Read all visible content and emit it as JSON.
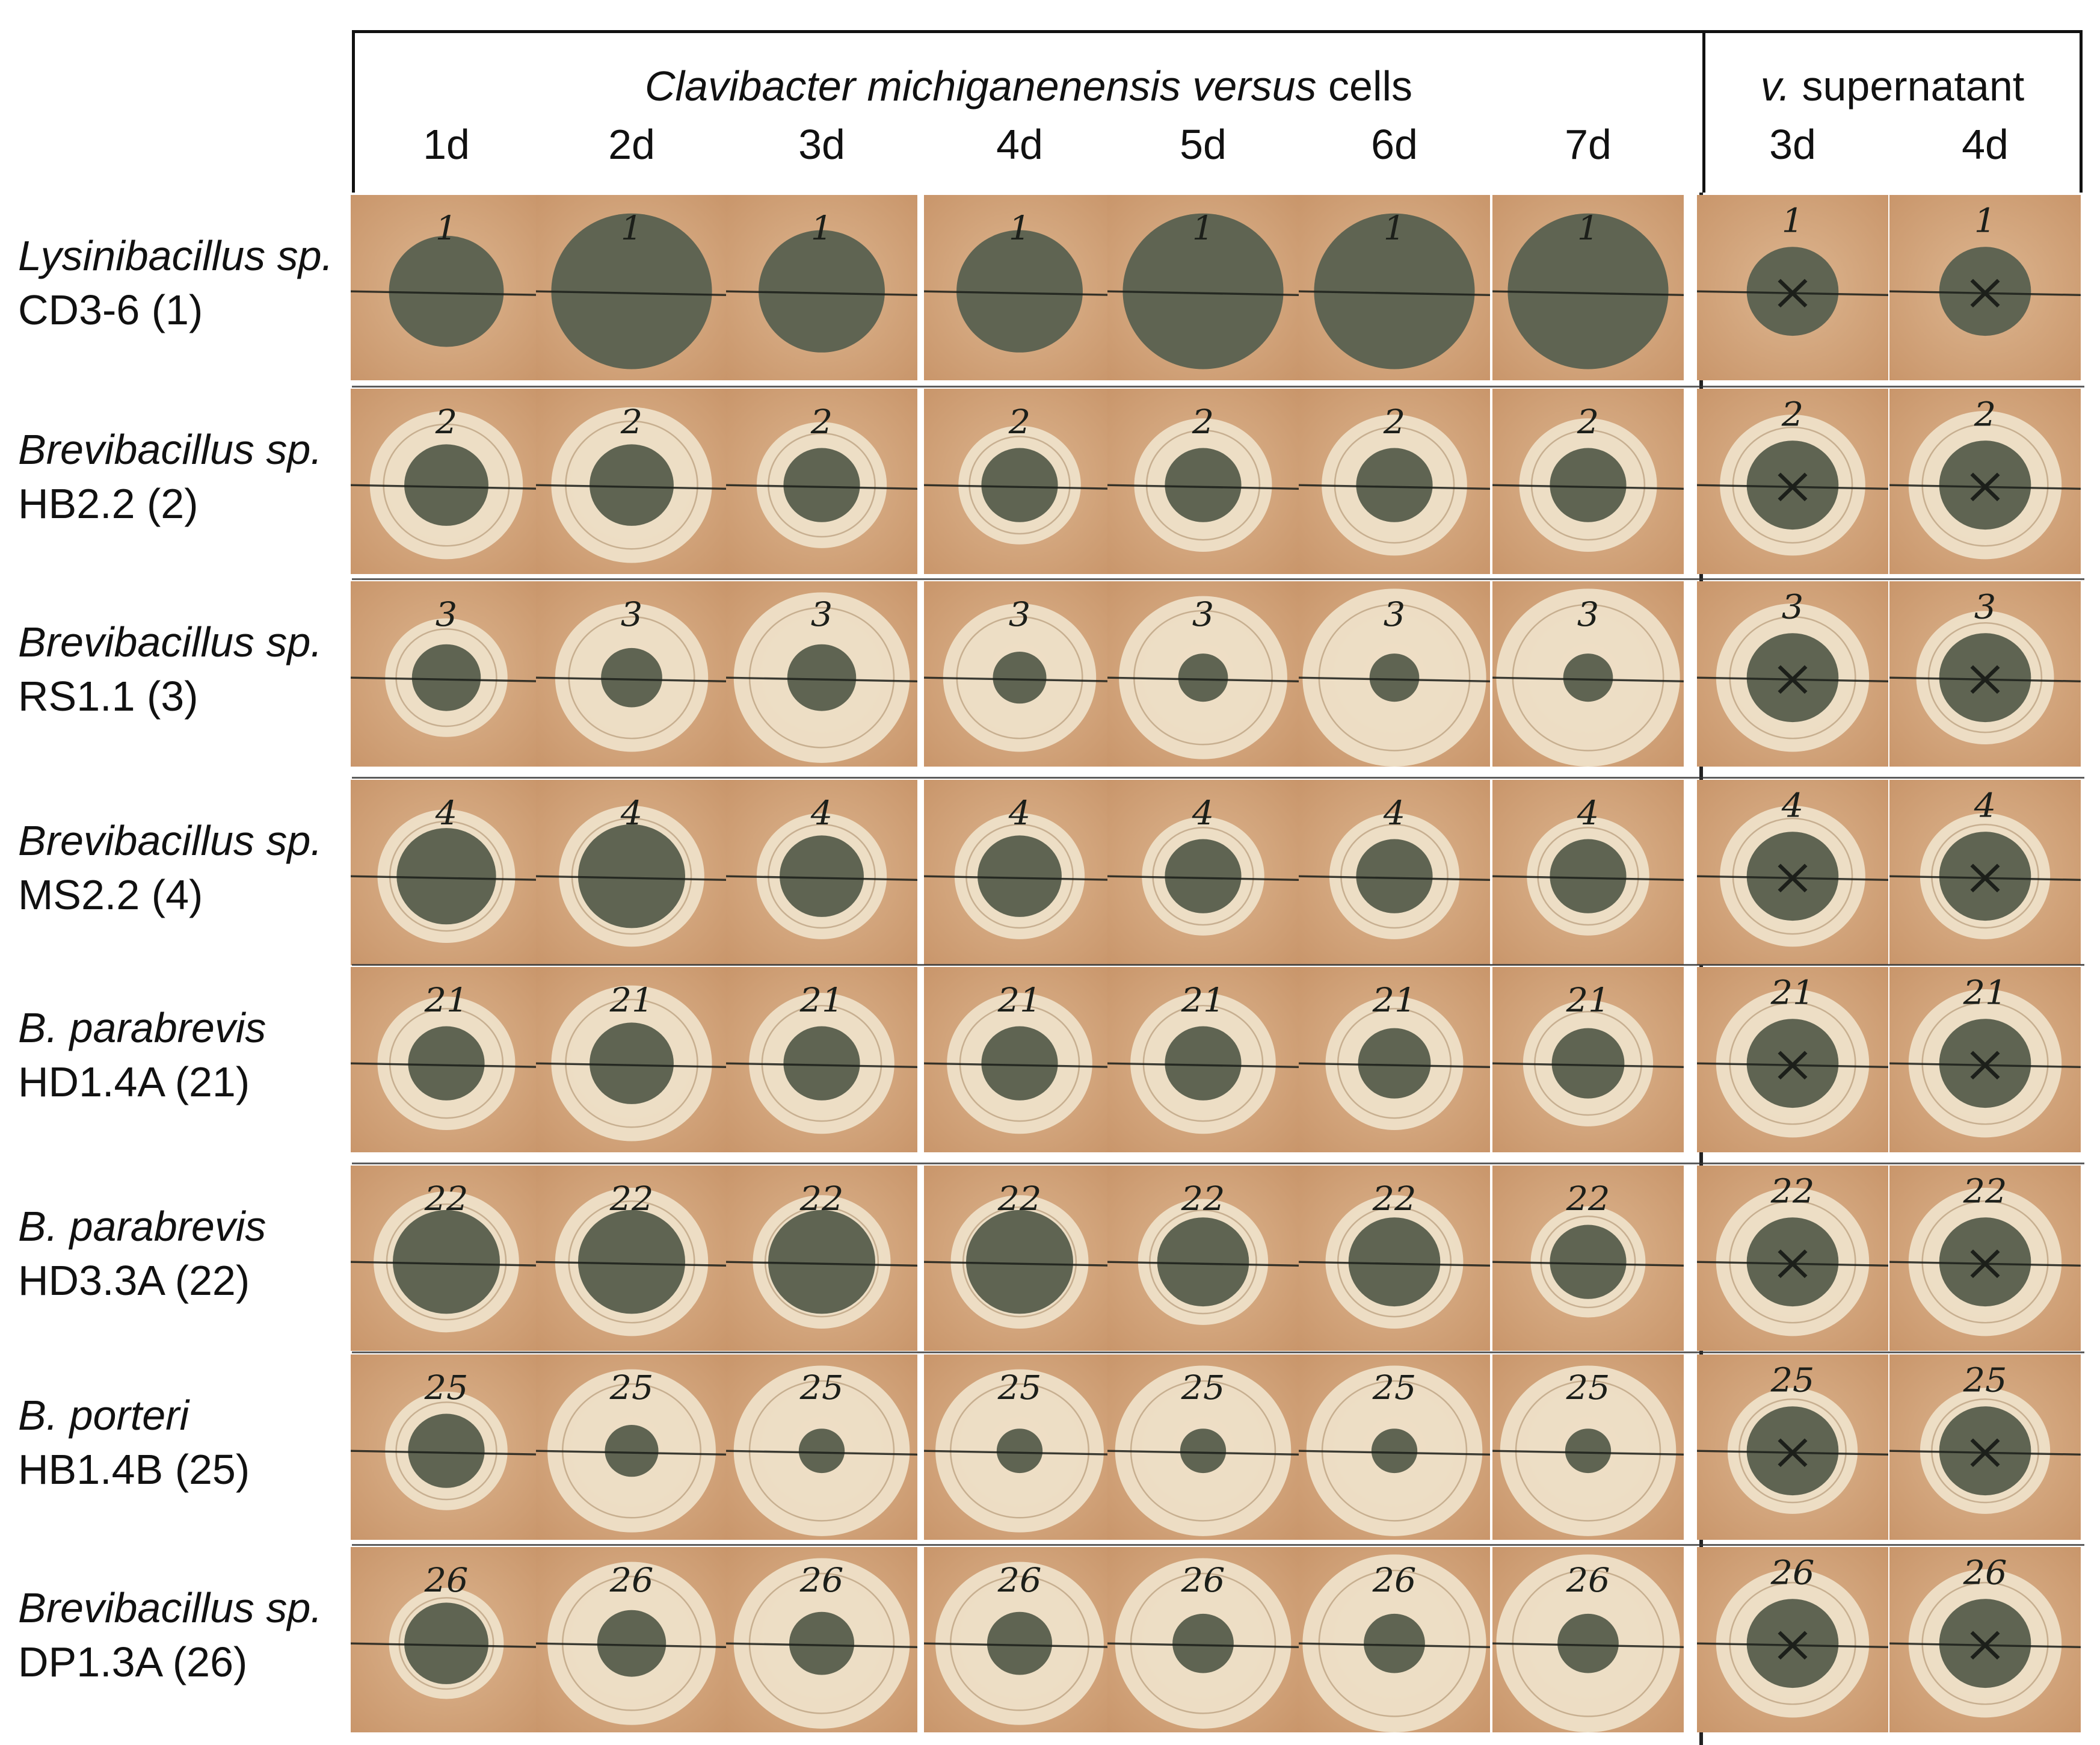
{
  "header": {
    "cells_title_italic": "Clavibacter michiganenensis versus",
    "cells_title_plain": " cells",
    "supernatant_title_italic": "v.",
    "supernatant_title_plain": " supernatant",
    "cell_days": [
      "1d",
      "2d",
      "3d",
      "4d",
      "5d",
      "6d",
      "7d"
    ],
    "supernatant_days": [
      "3d",
      "4d"
    ]
  },
  "rows": [
    {
      "genus": "Lysinibacillus sp.",
      "strain": "CD3-6 (1)",
      "mark": "1",
      "halo": [
        0,
        0,
        0,
        0,
        0,
        0,
        0
      ],
      "colony": [
        0.3,
        0.42,
        0.33,
        0.33,
        0.42,
        0.42,
        0.42
      ],
      "sup_halo": [
        0,
        0
      ]
    },
    {
      "genus": "Brevibacillus sp.",
      "strain": "HB2.2 (2)",
      "mark": "2",
      "halo": [
        0.4,
        0.42,
        0.34,
        0.32,
        0.36,
        0.38,
        0.36
      ],
      "colony": [
        0.22,
        0.22,
        0.2,
        0.2,
        0.2,
        0.2,
        0.2
      ],
      "sup_halo": [
        0.38,
        0.4
      ]
    },
    {
      "genus": "Brevibacillus sp.",
      "strain": "RS1.1 (3)",
      "mark": "3",
      "halo": [
        0.32,
        0.4,
        0.46,
        0.4,
        0.44,
        0.48,
        0.48
      ],
      "colony": [
        0.18,
        0.16,
        0.18,
        0.14,
        0.13,
        0.13,
        0.13
      ],
      "sup_halo": [
        0.4,
        0.36
      ]
    },
    {
      "genus": "Brevibacillus sp.",
      "strain": "MS2.2 (4)",
      "mark": "4",
      "halo": [
        0.36,
        0.38,
        0.34,
        0.34,
        0.32,
        0.34,
        0.32
      ],
      "colony": [
        0.26,
        0.28,
        0.22,
        0.22,
        0.2,
        0.2,
        0.2
      ],
      "sup_halo": [
        0.38,
        0.34
      ]
    },
    {
      "genus": "B. parabrevis",
      "strain": "HD1.4A (21)",
      "mark": "21",
      "halo": [
        0.36,
        0.42,
        0.38,
        0.38,
        0.38,
        0.36,
        0.34
      ],
      "colony": [
        0.2,
        0.22,
        0.2,
        0.2,
        0.2,
        0.19,
        0.19
      ],
      "sup_halo": [
        0.4,
        0.4
      ]
    },
    {
      "genus": "B. parabrevis",
      "strain": "HD3.3A (22)",
      "mark": "22",
      "halo": [
        0.38,
        0.4,
        0.36,
        0.36,
        0.34,
        0.36,
        0.3
      ],
      "colony": [
        0.28,
        0.28,
        0.28,
        0.28,
        0.24,
        0.24,
        0.2
      ],
      "sup_halo": [
        0.4,
        0.4
      ]
    },
    {
      "genus": "B. porteri",
      "strain": "HB1.4B (25)",
      "mark": "25",
      "halo": [
        0.32,
        0.44,
        0.46,
        0.44,
        0.46,
        0.46,
        0.46
      ],
      "colony": [
        0.2,
        0.14,
        0.12,
        0.12,
        0.12,
        0.12,
        0.12
      ],
      "sup_halo": [
        0.34,
        0.34
      ]
    },
    {
      "genus": "Brevibacillus sp.",
      "strain": "DP1.3A (26)",
      "mark": "26",
      "halo": [
        0.3,
        0.44,
        0.46,
        0.44,
        0.46,
        0.48,
        0.48
      ],
      "colony": [
        0.22,
        0.18,
        0.17,
        0.17,
        0.16,
        0.16,
        0.16
      ],
      "sup_halo": [
        0.4,
        0.4
      ]
    }
  ],
  "colors": {
    "plate": "#c9966b",
    "plate_light": "#ddb690",
    "halo": "#efe3cc",
    "colony": "#5f6452",
    "ink": "#1c1f1a"
  }
}
